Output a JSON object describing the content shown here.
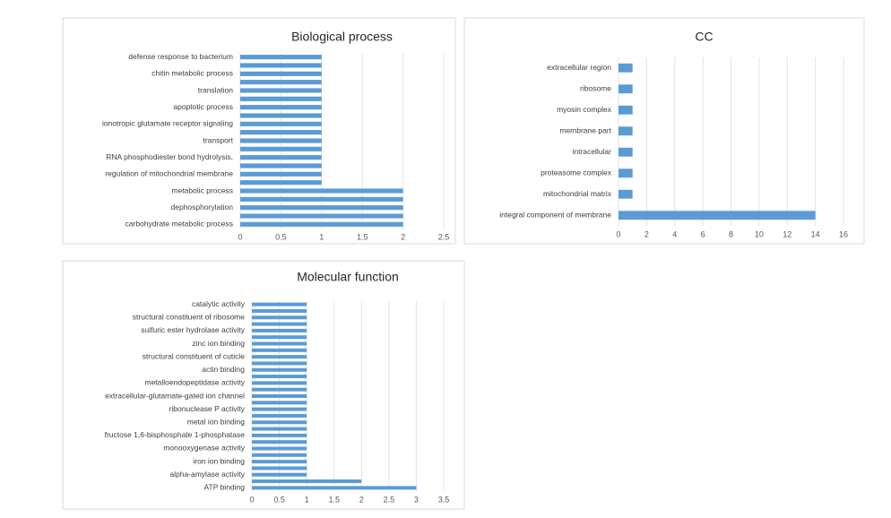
{
  "chart_data": [
    {
      "type": "bar",
      "orientation": "horizontal",
      "title": "Biological process",
      "color": "#5b9bd5",
      "grid": true,
      "categories": [
        "defense response to bacterium",
        null,
        "chitin metabolic process",
        null,
        "translation",
        null,
        "apoptotic process",
        null,
        "ionotropic glutamate receptor signaling",
        null,
        "transport",
        null,
        "RNA phosphodiester bond hydrolysis,",
        null,
        "regulation of mitochondrial membrane",
        null,
        "metabolic process",
        null,
        "dephosphorylation",
        null,
        "carbohydrate metabolic process"
      ],
      "values": [
        1,
        1,
        1,
        1,
        1,
        1,
        1,
        1,
        1,
        1,
        1,
        1,
        1,
        1,
        1,
        1,
        2,
        2,
        2,
        2,
        2
      ],
      "xlim": [
        0,
        2.5
      ],
      "xticks": [
        0,
        0.5,
        1,
        1.5,
        2,
        2.5
      ]
    },
    {
      "type": "bar",
      "orientation": "horizontal",
      "title": "CC",
      "color": "#5b9bd5",
      "grid": true,
      "categories": [
        "extracellular region",
        "ribosome",
        "myosin complex",
        "membrane part",
        "intracellular",
        "proteasome complex",
        "mitochondrial matrix",
        "integral component of membrane"
      ],
      "values": [
        1,
        1,
        1,
        1,
        1,
        1,
        1,
        14
      ],
      "xlim": [
        0,
        16
      ],
      "xticks": [
        0,
        2,
        4,
        6,
        8,
        10,
        12,
        14,
        16
      ]
    },
    {
      "type": "bar",
      "orientation": "horizontal",
      "title": "Molecular function",
      "color": "#5b9bd5",
      "grid": true,
      "categories": [
        "catalytic activity",
        null,
        "structural constituent of ribosome",
        null,
        "sulfuric ester hydrolase activity",
        null,
        "zinc ion binding",
        null,
        "structural constituent of cuticle",
        null,
        "actin binding",
        null,
        "metalloendopeptidase activity",
        null,
        "extracellular-glutamate-gated ion channel",
        null,
        "ribonuclease P activity",
        null,
        "metal ion binding",
        null,
        "fructose 1,6-bisphosphate 1-phosphatase",
        null,
        "monooxygenase activity",
        null,
        "iron ion binding",
        null,
        "alpha-amylase activity",
        null,
        "ATP binding"
      ],
      "values": [
        1,
        1,
        1,
        1,
        1,
        1,
        1,
        1,
        1,
        1,
        1,
        1,
        1,
        1,
        1,
        1,
        1,
        1,
        1,
        1,
        1,
        1,
        1,
        1,
        1,
        1,
        1,
        2,
        3
      ],
      "xlim": [
        0,
        3.5
      ],
      "xticks": [
        0,
        0.5,
        1,
        1.5,
        2,
        2.5,
        3,
        3.5
      ]
    }
  ]
}
